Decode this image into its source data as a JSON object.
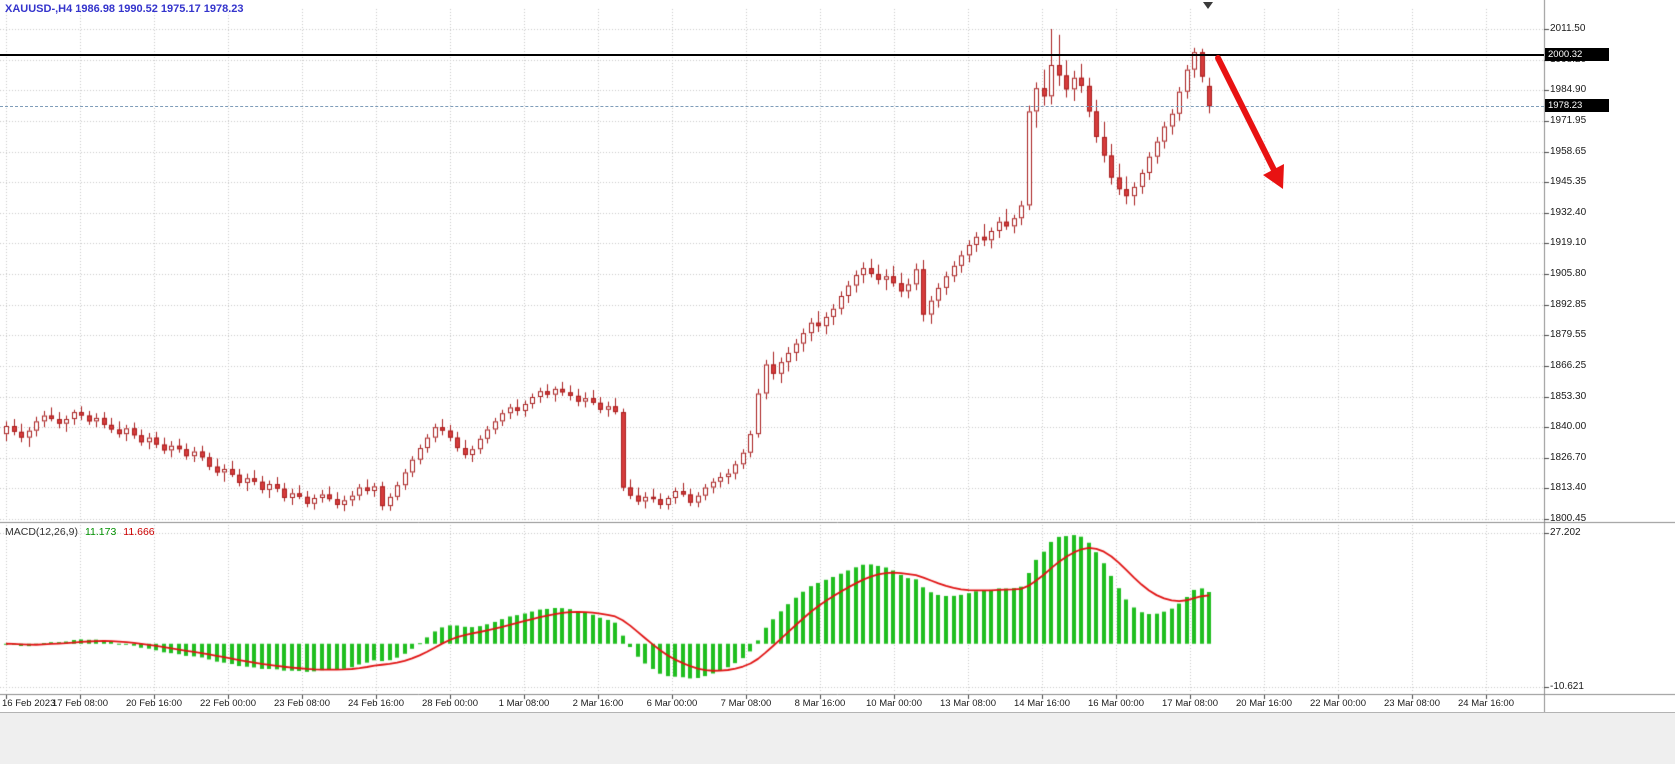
{
  "chart_data": {
    "type": "candlestick",
    "symbol": "XAUUSD-",
    "timeframe": "H4",
    "ohlc_header": "XAUUSD-,H4 1986.98 1990.52 1975.17 1978.23",
    "current_bar": {
      "open": 1986.98,
      "high": 1990.52,
      "low": 1975.17,
      "close": 1978.23
    },
    "current_price": 1978.23,
    "current_price_label": "1978.23",
    "y_axis": {
      "ticks": [
        "2011.50",
        "1998.20",
        "1984.90",
        "1971.95",
        "1958.65",
        "1945.35",
        "1932.40",
        "1919.10",
        "1905.80",
        "1892.85",
        "1879.55",
        "1866.25",
        "1853.30",
        "1840.00",
        "1826.70",
        "1813.40",
        "1800.45"
      ],
      "max": 2011.5,
      "min": 1800.45
    },
    "x_axis": {
      "ticks": [
        "16 Feb 2023",
        "17 Feb 08:00",
        "20 Feb 16:00",
        "22 Feb 00:00",
        "23 Feb 08:00",
        "24 Feb 16:00",
        "28 Feb 00:00",
        "1 Mar 08:00",
        "2 Mar 16:00",
        "6 Mar 00:00",
        "7 Mar 08:00",
        "8 Mar 16:00",
        "10 Mar 00:00",
        "13 Mar 08:00",
        "14 Mar 16:00",
        "16 Mar 00:00",
        "17 Mar 08:00",
        "20 Mar 16:00",
        "22 Mar 00:00",
        "23 Mar 08:00",
        "24 Mar 16:00"
      ]
    },
    "objects": {
      "horizontal_line": 2000.32,
      "horizontal_line_label": "2000.32",
      "arrow": {
        "shape": "arrow",
        "direction": "down-right",
        "color": "#e81212"
      }
    },
    "series_ohlc": [
      [
        1837.0,
        1842.5,
        1834.0,
        1840.5
      ],
      [
        1840.5,
        1843.5,
        1836.5,
        1838.0
      ],
      [
        1838.0,
        1841.5,
        1833.5,
        1835.5
      ],
      [
        1835.5,
        1840.0,
        1831.5,
        1838.5
      ],
      [
        1838.5,
        1844.5,
        1836.0,
        1842.5
      ],
      [
        1842.5,
        1847.0,
        1840.0,
        1845.0
      ],
      [
        1845.0,
        1848.5,
        1842.5,
        1843.5
      ],
      [
        1843.5,
        1846.5,
        1839.5,
        1841.5
      ],
      [
        1841.5,
        1845.0,
        1838.0,
        1843.5
      ],
      [
        1843.5,
        1847.5,
        1841.0,
        1846.5
      ],
      [
        1846.5,
        1849.0,
        1843.0,
        1845.0
      ],
      [
        1845.0,
        1847.0,
        1841.0,
        1842.5
      ],
      [
        1842.5,
        1846.0,
        1840.0,
        1844.0
      ],
      [
        1844.0,
        1846.5,
        1839.5,
        1841.0
      ],
      [
        1841.0,
        1844.0,
        1837.5,
        1839.0
      ],
      [
        1839.0,
        1842.5,
        1835.5,
        1837.0
      ],
      [
        1837.0,
        1841.0,
        1834.0,
        1839.5
      ],
      [
        1839.5,
        1842.0,
        1835.0,
        1836.5
      ],
      [
        1836.5,
        1839.0,
        1832.0,
        1833.5
      ],
      [
        1833.5,
        1837.5,
        1830.5,
        1835.5
      ],
      [
        1835.5,
        1838.0,
        1831.0,
        1832.5
      ],
      [
        1832.5,
        1835.5,
        1828.5,
        1830.0
      ],
      [
        1830.0,
        1834.0,
        1827.0,
        1832.0
      ],
      [
        1832.0,
        1835.0,
        1829.0,
        1830.5
      ],
      [
        1830.5,
        1833.0,
        1826.0,
        1827.5
      ],
      [
        1827.5,
        1831.5,
        1825.0,
        1829.5
      ],
      [
        1829.5,
        1832.0,
        1825.5,
        1827.0
      ],
      [
        1827.0,
        1829.0,
        1821.5,
        1823.0
      ],
      [
        1823.0,
        1826.5,
        1819.0,
        1820.5
      ],
      [
        1820.5,
        1824.0,
        1816.5,
        1822.0
      ],
      [
        1822.0,
        1825.5,
        1818.5,
        1819.5
      ],
      [
        1819.5,
        1822.0,
        1814.5,
        1816.0
      ],
      [
        1816.0,
        1820.0,
        1812.5,
        1818.0
      ],
      [
        1818.0,
        1821.5,
        1815.0,
        1816.5
      ],
      [
        1816.5,
        1819.0,
        1811.5,
        1813.0
      ],
      [
        1813.0,
        1817.0,
        1809.5,
        1815.5
      ],
      [
        1815.5,
        1818.5,
        1812.0,
        1813.5
      ],
      [
        1813.5,
        1816.0,
        1808.0,
        1809.5
      ],
      [
        1809.5,
        1813.5,
        1806.5,
        1811.5
      ],
      [
        1811.5,
        1815.0,
        1809.0,
        1810.0
      ],
      [
        1810.0,
        1812.5,
        1805.5,
        1807.0
      ],
      [
        1807.0,
        1811.0,
        1804.5,
        1809.5
      ],
      [
        1809.5,
        1813.0,
        1807.5,
        1811.0
      ],
      [
        1811.0,
        1814.5,
        1808.0,
        1809.0
      ],
      [
        1809.0,
        1812.0,
        1805.0,
        1806.5
      ],
      [
        1806.5,
        1810.5,
        1803.8,
        1808.5
      ],
      [
        1808.5,
        1812.5,
        1806.0,
        1810.5
      ],
      [
        1810.5,
        1815.5,
        1808.5,
        1814.0
      ],
      [
        1814.0,
        1817.5,
        1811.0,
        1812.5
      ],
      [
        1812.5,
        1816.0,
        1810.0,
        1814.5
      ],
      [
        1814.5,
        1816.5,
        1804.2,
        1806.0
      ],
      [
        1806.0,
        1811.5,
        1804.0,
        1810.0
      ],
      [
        1810.0,
        1816.5,
        1808.5,
        1815.0
      ],
      [
        1815.0,
        1822.0,
        1813.0,
        1820.5
      ],
      [
        1820.5,
        1827.5,
        1818.5,
        1826.0
      ],
      [
        1826.0,
        1832.5,
        1824.0,
        1831.0
      ],
      [
        1831.0,
        1837.0,
        1829.0,
        1835.5
      ],
      [
        1835.5,
        1841.5,
        1833.5,
        1840.0
      ],
      [
        1840.0,
        1843.5,
        1836.5,
        1838.5
      ],
      [
        1838.5,
        1841.0,
        1834.0,
        1835.5
      ],
      [
        1835.5,
        1838.0,
        1829.5,
        1831.0
      ],
      [
        1831.0,
        1834.5,
        1826.5,
        1828.0
      ],
      [
        1828.0,
        1832.0,
        1825.0,
        1830.5
      ],
      [
        1830.5,
        1836.5,
        1828.5,
        1835.0
      ],
      [
        1835.0,
        1840.5,
        1833.0,
        1839.0
      ],
      [
        1839.0,
        1844.0,
        1837.0,
        1842.5
      ],
      [
        1842.5,
        1847.5,
        1840.5,
        1846.0
      ],
      [
        1846.0,
        1850.0,
        1843.5,
        1848.5
      ],
      [
        1848.5,
        1852.0,
        1845.0,
        1847.0
      ],
      [
        1847.0,
        1851.5,
        1844.5,
        1850.0
      ],
      [
        1850.0,
        1854.5,
        1848.0,
        1853.0
      ],
      [
        1853.0,
        1857.0,
        1850.5,
        1855.5
      ],
      [
        1855.5,
        1858.5,
        1852.5,
        1854.0
      ],
      [
        1854.0,
        1857.5,
        1851.0,
        1856.5
      ],
      [
        1856.5,
        1859.5,
        1853.5,
        1855.0
      ],
      [
        1855.0,
        1858.0,
        1851.5,
        1853.5
      ],
      [
        1853.5,
        1856.5,
        1849.0,
        1851.0
      ],
      [
        1851.0,
        1855.0,
        1848.5,
        1852.5
      ],
      [
        1852.5,
        1856.0,
        1849.5,
        1850.5
      ],
      [
        1850.5,
        1853.0,
        1846.0,
        1847.5
      ],
      [
        1847.5,
        1851.0,
        1844.5,
        1849.0
      ],
      [
        1849.0,
        1852.5,
        1845.5,
        1846.5
      ],
      [
        1846.5,
        1848.0,
        1812.5,
        1814.0
      ],
      [
        1814.0,
        1817.5,
        1809.0,
        1810.5
      ],
      [
        1810.5,
        1814.0,
        1806.5,
        1808.0
      ],
      [
        1808.0,
        1812.0,
        1805.0,
        1810.0
      ],
      [
        1810.0,
        1813.5,
        1807.5,
        1809.0
      ],
      [
        1809.0,
        1811.5,
        1804.8,
        1806.5
      ],
      [
        1806.5,
        1810.5,
        1804.5,
        1809.5
      ],
      [
        1809.5,
        1814.0,
        1807.0,
        1812.5
      ],
      [
        1812.5,
        1816.0,
        1810.0,
        1811.0
      ],
      [
        1811.0,
        1813.5,
        1806.0,
        1807.5
      ],
      [
        1807.5,
        1812.0,
        1805.5,
        1810.5
      ],
      [
        1810.5,
        1815.5,
        1808.5,
        1814.0
      ],
      [
        1814.0,
        1818.0,
        1811.5,
        1816.5
      ],
      [
        1816.5,
        1820.5,
        1814.0,
        1818.5
      ],
      [
        1818.5,
        1822.0,
        1815.5,
        1820.0
      ],
      [
        1820.0,
        1825.5,
        1817.5,
        1824.0
      ],
      [
        1824.0,
        1830.5,
        1822.0,
        1829.0
      ],
      [
        1829.0,
        1838.5,
        1827.0,
        1837.0
      ],
      [
        1837.0,
        1856.5,
        1835.5,
        1854.5
      ],
      [
        1854.5,
        1869.0,
        1852.0,
        1867.0
      ],
      [
        1867.0,
        1872.5,
        1860.5,
        1863.0
      ],
      [
        1863.0,
        1870.0,
        1859.0,
        1868.0
      ],
      [
        1868.0,
        1874.5,
        1864.0,
        1872.0
      ],
      [
        1872.0,
        1878.0,
        1868.5,
        1876.0
      ],
      [
        1876.0,
        1882.5,
        1872.5,
        1880.5
      ],
      [
        1880.5,
        1887.0,
        1877.0,
        1885.0
      ],
      [
        1885.0,
        1890.0,
        1881.0,
        1883.5
      ],
      [
        1883.5,
        1889.5,
        1880.0,
        1887.5
      ],
      [
        1887.5,
        1893.0,
        1884.0,
        1891.0
      ],
      [
        1891.0,
        1898.5,
        1888.5,
        1896.5
      ],
      [
        1896.5,
        1903.0,
        1893.5,
        1901.0
      ],
      [
        1901.0,
        1907.5,
        1898.0,
        1905.5
      ],
      [
        1905.5,
        1911.0,
        1902.0,
        1908.5
      ],
      [
        1908.5,
        1912.5,
        1904.5,
        1906.0
      ],
      [
        1906.0,
        1910.0,
        1901.5,
        1903.5
      ],
      [
        1903.5,
        1908.0,
        1899.0,
        1905.0
      ],
      [
        1905.0,
        1909.5,
        1900.5,
        1902.0
      ],
      [
        1902.0,
        1906.5,
        1896.0,
        1898.5
      ],
      [
        1898.5,
        1904.0,
        1895.5,
        1901.5
      ],
      [
        1901.5,
        1910.5,
        1899.0,
        1908.0
      ],
      [
        1908.0,
        1912.0,
        1885.5,
        1888.5
      ],
      [
        1888.5,
        1896.5,
        1884.5,
        1894.5
      ],
      [
        1894.5,
        1902.0,
        1891.5,
        1900.0
      ],
      [
        1900.0,
        1907.0,
        1897.0,
        1905.0
      ],
      [
        1905.0,
        1911.5,
        1902.5,
        1909.5
      ],
      [
        1909.5,
        1916.0,
        1906.5,
        1914.0
      ],
      [
        1914.0,
        1920.5,
        1911.0,
        1918.5
      ],
      [
        1918.5,
        1924.0,
        1915.5,
        1922.0
      ],
      [
        1922.0,
        1927.5,
        1918.0,
        1920.5
      ],
      [
        1920.5,
        1926.0,
        1917.0,
        1924.5
      ],
      [
        1924.5,
        1930.5,
        1921.5,
        1928.5
      ],
      [
        1928.5,
        1934.0,
        1925.0,
        1926.5
      ],
      [
        1926.5,
        1931.5,
        1923.5,
        1930.0
      ],
      [
        1930.0,
        1937.5,
        1927.0,
        1935.5
      ],
      [
        1935.5,
        1978.5,
        1933.5,
        1976.0
      ],
      [
        1976.0,
        1988.5,
        1969.0,
        1986.0
      ],
      [
        1986.0,
        1994.0,
        1978.5,
        1982.5
      ],
      [
        1982.5,
        2011.5,
        1979.0,
        1996.0
      ],
      [
        1996.0,
        2009.0,
        1987.0,
        1991.5
      ],
      [
        1991.5,
        1998.0,
        1982.0,
        1985.5
      ],
      [
        1985.5,
        1993.5,
        1980.5,
        1990.5
      ],
      [
        1990.5,
        1996.5,
        1984.0,
        1987.0
      ],
      [
        1987.0,
        1990.5,
        1973.5,
        1976.0
      ],
      [
        1976.0,
        1981.0,
        1962.5,
        1965.0
      ],
      [
        1965.0,
        1971.5,
        1954.0,
        1957.0
      ],
      [
        1957.0,
        1962.0,
        1944.5,
        1947.5
      ],
      [
        1947.5,
        1953.5,
        1940.0,
        1942.5
      ],
      [
        1942.5,
        1948.0,
        1936.0,
        1939.5
      ],
      [
        1939.5,
        1945.5,
        1935.5,
        1943.5
      ],
      [
        1943.5,
        1951.0,
        1940.5,
        1949.5
      ],
      [
        1949.5,
        1958.5,
        1946.5,
        1956.5
      ],
      [
        1956.5,
        1965.0,
        1953.5,
        1963.0
      ],
      [
        1963.0,
        1971.5,
        1960.0,
        1969.5
      ],
      [
        1969.5,
        1977.0,
        1966.0,
        1975.0
      ],
      [
        1975.0,
        1986.5,
        1972.0,
        1984.5
      ],
      [
        1984.5,
        1996.0,
        1981.5,
        1994.0
      ],
      [
        1994.0,
        2003.4,
        1990.5,
        2001.5
      ],
      [
        2001.5,
        2003.0,
        1988.5,
        1991.0
      ],
      [
        1986.98,
        1990.52,
        1975.17,
        1978.23
      ]
    ],
    "indicator_panel": {
      "type": "macd",
      "params": [
        12,
        26,
        9
      ],
      "label": "MACD(12,26,9)",
      "main_value": "11.173",
      "signal_value": "11.666",
      "axis_max": "27.202",
      "axis_min": "-10.621"
    }
  },
  "colors": {
    "background": "#ffffff",
    "grid": "#c8c8c8",
    "candle_border": "#a81e1e",
    "bull_body": "#ffffff",
    "bear_body": "#d63c3c",
    "histogram": "#1fbe1f",
    "signal_line": "#e01212",
    "hline": "#000000",
    "bid_line": "#7f9db9",
    "arrow": "#e81212",
    "axis_text": "#1a1a1a",
    "ohlc_label": "#3434cc",
    "badge_bg": "#000000",
    "badge_text": "#ffffff"
  }
}
